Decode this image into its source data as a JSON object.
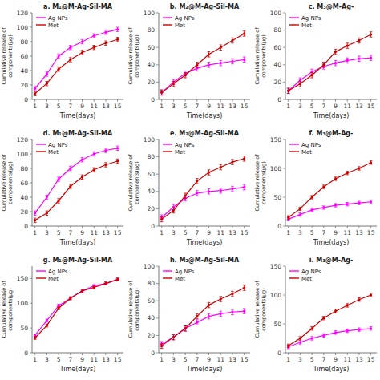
{
  "chart_data": [
    {
      "type": "line",
      "title": "a. M₁@M-Ag-Sil-MA",
      "xlabel": "Time(days)",
      "ylabel": "Cumulative release of\ncomponents(µg)",
      "x": [
        1,
        3,
        5,
        7,
        9,
        11,
        13,
        15
      ],
      "xlim": [
        0.5,
        16
      ],
      "xticks": [
        1,
        3,
        5,
        7,
        9,
        11,
        13,
        15
      ],
      "ylim": [
        0,
        120
      ],
      "yticks": [
        0,
        20,
        40,
        60,
        80,
        100,
        120
      ],
      "grid": false,
      "legend": "upper left",
      "marker": "o",
      "series": [
        {
          "name": "Ag NPs",
          "color": "#FF00FF",
          "values": [
            15,
            35,
            60,
            72,
            80,
            88,
            93,
            97
          ],
          "errors": [
            3,
            3,
            3,
            3,
            3,
            3,
            3,
            3
          ]
        },
        {
          "name": "Met",
          "color": "#CC0000",
          "values": [
            8,
            22,
            42,
            55,
            65,
            72,
            78,
            83
          ],
          "errors": [
            3,
            3,
            3,
            3,
            3,
            3,
            3,
            3
          ]
        }
      ]
    },
    {
      "type": "line",
      "title": "b. M₂@M-Ag-Sil-MA",
      "xlabel": "Time(days)",
      "ylabel": "Cumulative release of\ncomponents(µg)",
      "x": [
        1,
        3,
        5,
        7,
        9,
        11,
        13,
        15
      ],
      "xlim": [
        0.5,
        16
      ],
      "xticks": [
        1,
        3,
        5,
        7,
        9,
        11,
        13,
        15
      ],
      "ylim": [
        0,
        100
      ],
      "yticks": [
        0,
        20,
        40,
        60,
        80,
        100
      ],
      "grid": false,
      "legend": "upper left",
      "marker": "o",
      "series": [
        {
          "name": "Ag NPs",
          "color": "#FF00FF",
          "values": [
            8,
            20,
            30,
            36,
            40,
            42,
            44,
            46
          ],
          "errors": [
            3,
            3,
            3,
            3,
            3,
            3,
            3,
            3
          ]
        },
        {
          "name": "Met",
          "color": "#CC0000",
          "values": [
            8,
            18,
            28,
            40,
            52,
            60,
            68,
            76
          ],
          "errors": [
            3,
            3,
            3,
            3,
            3,
            3,
            3,
            3
          ]
        }
      ]
    },
    {
      "type": "line",
      "title": "c. M₃@M-Ag-",
      "xlabel": "Time(days)",
      "ylabel": "Cumulative release of\ncomponents(µg)",
      "x": [
        1,
        3,
        5,
        7,
        9,
        11,
        13,
        15
      ],
      "xlim": [
        0.5,
        16
      ],
      "xticks": [
        1,
        3,
        5,
        7,
        9,
        11,
        13,
        15
      ],
      "ylim": [
        0,
        100
      ],
      "yticks": [
        0,
        20,
        40,
        60,
        80,
        100
      ],
      "grid": false,
      "legend": "upper left",
      "marker": "o",
      "series": [
        {
          "name": "Ag NPs",
          "color": "#FF00FF",
          "values": [
            10,
            22,
            32,
            38,
            42,
            45,
            47,
            48
          ],
          "errors": [
            3,
            3,
            3,
            3,
            3,
            3,
            3,
            3
          ]
        },
        {
          "name": "Met",
          "color": "#CC0000",
          "values": [
            10,
            18,
            28,
            40,
            55,
            62,
            68,
            75
          ],
          "errors": [
            3,
            3,
            3,
            3,
            3,
            3,
            3,
            3
          ]
        }
      ]
    },
    {
      "type": "line",
      "title": "d. M₁@M-Ag-Sil-MA",
      "xlabel": "Time(days)",
      "ylabel": "Cumulative release of\ncomponents(µg)",
      "x": [
        1,
        3,
        5,
        7,
        9,
        11,
        13,
        15
      ],
      "xlim": [
        0.5,
        16
      ],
      "xticks": [
        1,
        3,
        5,
        7,
        9,
        11,
        13,
        15
      ],
      "ylim": [
        0,
        120
      ],
      "yticks": [
        0,
        20,
        40,
        60,
        80,
        100,
        120
      ],
      "grid": false,
      "legend": "upper left",
      "marker": "o",
      "series": [
        {
          "name": "Ag NPs",
          "color": "#FF00FF",
          "values": [
            18,
            40,
            65,
            80,
            92,
            100,
            105,
            108
          ],
          "errors": [
            3,
            3,
            3,
            3,
            3,
            3,
            3,
            3
          ]
        },
        {
          "name": "Met",
          "color": "#CC0000",
          "values": [
            8,
            18,
            35,
            55,
            68,
            78,
            85,
            90
          ],
          "errors": [
            3,
            3,
            3,
            3,
            3,
            3,
            3,
            3
          ]
        }
      ]
    },
    {
      "type": "line",
      "title": "e. M₂@M-Ag-Sil-MA",
      "xlabel": "Time(days)",
      "ylabel": "Cumulative release of\ncomponents(µg)",
      "x": [
        1,
        3,
        5,
        7,
        9,
        11,
        13,
        15
      ],
      "xlim": [
        0.5,
        16
      ],
      "xticks": [
        1,
        3,
        5,
        7,
        9,
        11,
        13,
        15
      ],
      "ylim": [
        0,
        100
      ],
      "yticks": [
        0,
        20,
        40,
        60,
        80,
        100
      ],
      "grid": false,
      "legend": "upper left",
      "marker": "o",
      "series": [
        {
          "name": "Ag NPs",
          "color": "#FF00FF",
          "values": [
            10,
            22,
            32,
            38,
            40,
            41,
            43,
            45
          ],
          "errors": [
            3,
            3,
            3,
            3,
            3,
            3,
            3,
            3
          ]
        },
        {
          "name": "Met",
          "color": "#CC0000",
          "values": [
            8,
            18,
            35,
            52,
            62,
            68,
            74,
            78
          ],
          "errors": [
            3,
            3,
            3,
            3,
            3,
            3,
            3,
            3
          ]
        }
      ]
    },
    {
      "type": "line",
      "title": "f. M₃@M-Ag-",
      "xlabel": "Time(days)",
      "ylabel": "Cumulative release of\ncomponents(µg)",
      "x": [
        1,
        3,
        5,
        7,
        9,
        11,
        13,
        15
      ],
      "xlim": [
        0.5,
        16
      ],
      "xticks": [
        1,
        3,
        5,
        7,
        9,
        11,
        13,
        15
      ],
      "ylim": [
        0,
        150
      ],
      "yticks": [
        0,
        50,
        100,
        150
      ],
      "grid": false,
      "legend": "upper left",
      "marker": "o",
      "series": [
        {
          "name": "Ag NPs",
          "color": "#FF00FF",
          "values": [
            12,
            20,
            28,
            32,
            36,
            38,
            40,
            42
          ],
          "errors": [
            3,
            3,
            3,
            3,
            3,
            3,
            3,
            3
          ]
        },
        {
          "name": "Met",
          "color": "#CC0000",
          "values": [
            15,
            30,
            50,
            68,
            82,
            92,
            100,
            110
          ],
          "errors": [
            3,
            3,
            3,
            3,
            3,
            3,
            3,
            3
          ]
        }
      ]
    },
    {
      "type": "line",
      "title": "g. M₁@M-Ag-Sil-MA",
      "xlabel": "Time(days)",
      "ylabel": "Cumulative release of\ncomponents(µg)",
      "x": [
        1,
        3,
        5,
        7,
        9,
        11,
        13,
        15
      ],
      "xlim": [
        0.5,
        16
      ],
      "xticks": [
        1,
        3,
        5,
        7,
        9,
        11,
        13,
        15
      ],
      "ylim": [
        0,
        175
      ],
      "yticks": [
        0,
        50,
        100,
        150
      ],
      "grid": false,
      "legend": "upper left",
      "marker": "o",
      "series": [
        {
          "name": "Ag NPs",
          "color": "#FF00FF",
          "values": [
            35,
            65,
            95,
            110,
            125,
            135,
            140,
            148
          ],
          "errors": [
            3,
            3,
            3,
            3,
            3,
            3,
            3,
            3
          ]
        },
        {
          "name": "Met",
          "color": "#CC0000",
          "values": [
            30,
            55,
            90,
            110,
            125,
            132,
            140,
            148
          ],
          "errors": [
            3,
            3,
            3,
            3,
            3,
            3,
            3,
            3
          ]
        }
      ]
    },
    {
      "type": "line",
      "title": "h. M₂@M-Ag-Sil-MA",
      "xlabel": "Time(days)",
      "ylabel": "Cumulative release of\ncomponents(µg)",
      "x": [
        1,
        3,
        5,
        7,
        9,
        11,
        13,
        15
      ],
      "xlim": [
        0.5,
        16
      ],
      "xticks": [
        1,
        3,
        5,
        7,
        9,
        11,
        13,
        15
      ],
      "ylim": [
        0,
        100
      ],
      "yticks": [
        0,
        20,
        40,
        60,
        80,
        100
      ],
      "grid": false,
      "legend": "upper left",
      "marker": "o",
      "series": [
        {
          "name": "Ag NPs",
          "color": "#FF00FF",
          "values": [
            10,
            18,
            28,
            35,
            42,
            45,
            47,
            48
          ],
          "errors": [
            3,
            3,
            3,
            3,
            3,
            3,
            3,
            3
          ]
        },
        {
          "name": "Met",
          "color": "#CC0000",
          "values": [
            8,
            18,
            28,
            42,
            55,
            62,
            68,
            75
          ],
          "errors": [
            3,
            3,
            3,
            3,
            3,
            3,
            3,
            3
          ]
        }
      ]
    },
    {
      "type": "line",
      "title": "i. M₃@M-Ag-",
      "xlabel": "Time(days)",
      "ylabel": "Cumulative release of\ncomponents(µg)",
      "x": [
        1,
        3,
        5,
        7,
        9,
        11,
        13,
        15
      ],
      "xlim": [
        0.5,
        16
      ],
      "xticks": [
        1,
        3,
        5,
        7,
        9,
        11,
        13,
        15
      ],
      "ylim": [
        0,
        150
      ],
      "yticks": [
        0,
        50,
        100,
        150
      ],
      "grid": false,
      "legend": "upper left",
      "marker": "o",
      "series": [
        {
          "name": "Ag NPs",
          "color": "#FF00FF",
          "values": [
            10,
            18,
            25,
            30,
            35,
            38,
            40,
            42
          ],
          "errors": [
            3,
            3,
            3,
            3,
            3,
            3,
            3,
            3
          ]
        },
        {
          "name": "Met",
          "color": "#CC0000",
          "values": [
            12,
            25,
            42,
            60,
            72,
            82,
            92,
            100
          ],
          "errors": [
            3,
            3,
            3,
            3,
            3,
            3,
            3,
            3
          ]
        }
      ]
    }
  ]
}
